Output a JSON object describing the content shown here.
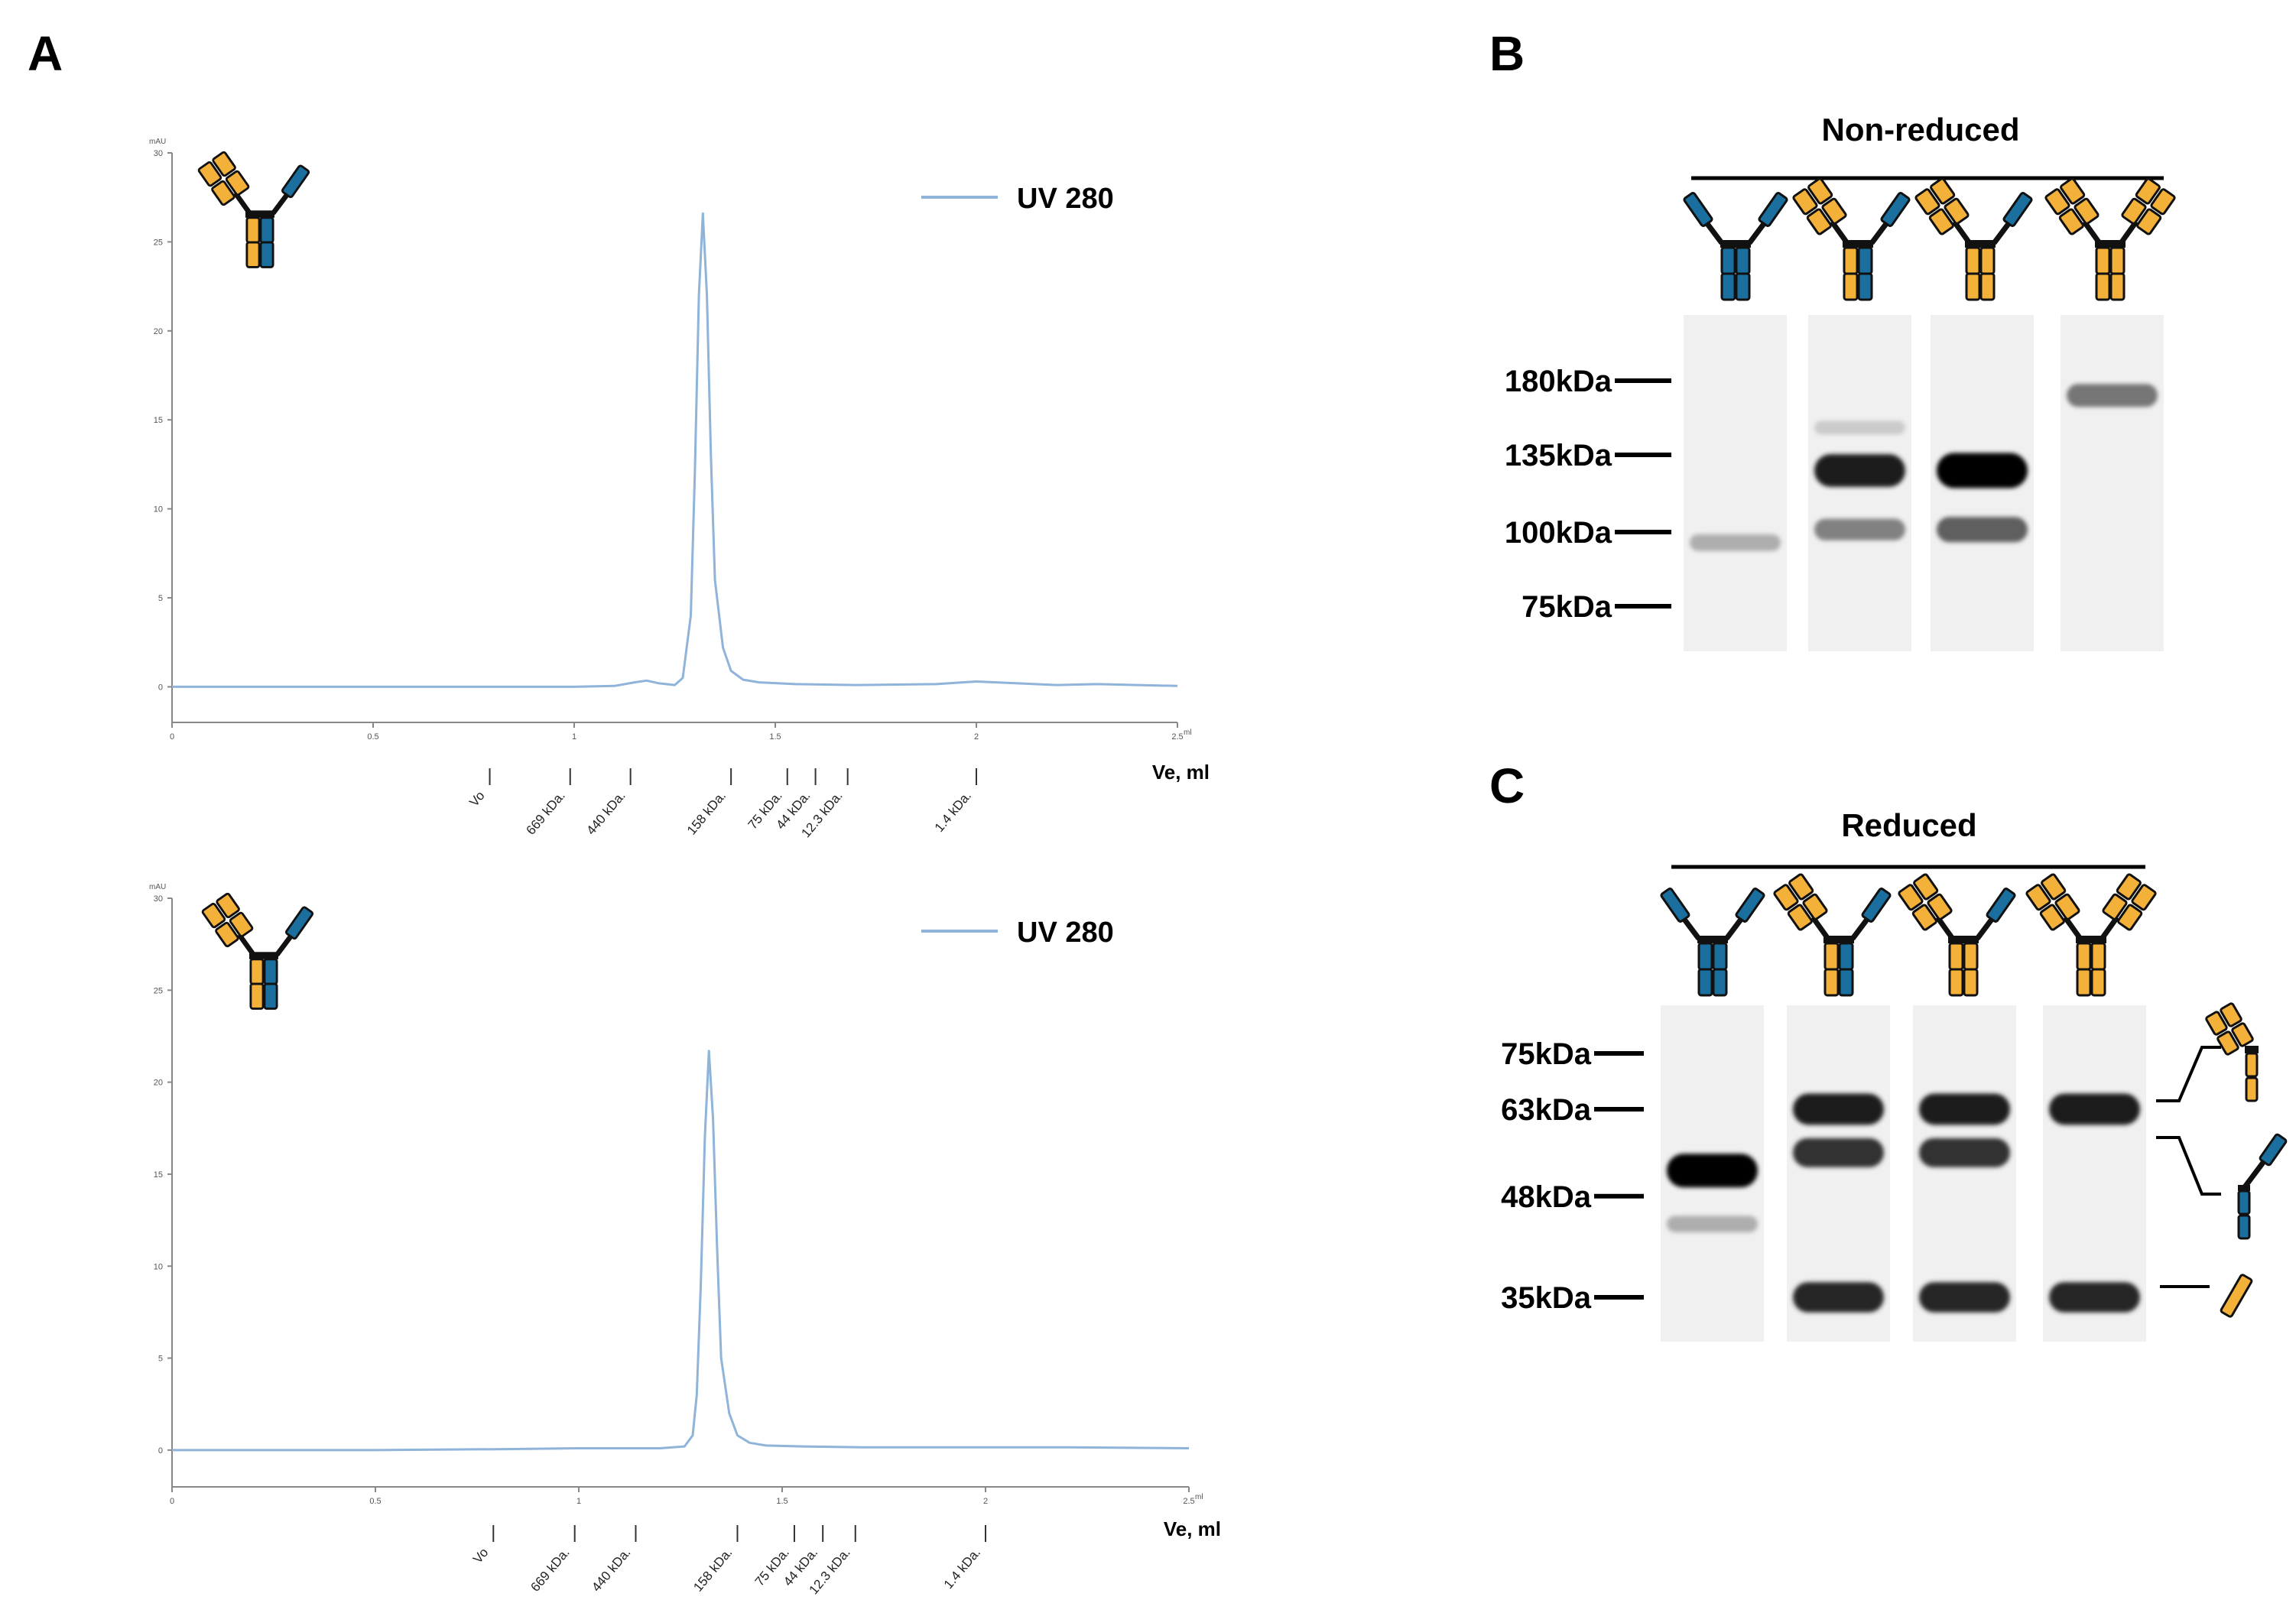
{
  "colors": {
    "trace": "#8fb3d9",
    "orange": "#f4b13a",
    "blue": "#1a6f9e",
    "axis": "#888888"
  },
  "panel_labels": {
    "a": "A",
    "b": "B",
    "c": "C"
  },
  "chart_data": [
    {
      "type": "line",
      "title": "",
      "ylabel": "mAU",
      "xlabel": "Ve, ml",
      "x_unit": "ml",
      "ylim": [
        -2,
        30
      ],
      "xlim": [
        0,
        2.5
      ],
      "y_ticks": [
        0,
        5,
        10,
        15,
        20,
        25,
        30
      ],
      "y_tick_labels": [
        "0",
        "5",
        "10",
        "15",
        "20",
        "25",
        "30"
      ],
      "x_ticks": [
        0,
        0.5,
        1,
        1.5,
        2,
        2.5
      ],
      "x_tick_labels": [
        "0",
        "0.5",
        "1",
        "1.5",
        "2",
        "2.5"
      ],
      "legend": {
        "label": "UV 280",
        "position": "top-right"
      },
      "peak": {
        "x": 1.32,
        "y": 26.6
      },
      "series": [
        {
          "name": "UV 280",
          "x": [
            0,
            0.2,
            0.5,
            0.8,
            1.0,
            1.1,
            1.15,
            1.18,
            1.21,
            1.25,
            1.27,
            1.29,
            1.3,
            1.31,
            1.32,
            1.33,
            1.34,
            1.35,
            1.37,
            1.39,
            1.42,
            1.46,
            1.55,
            1.7,
            1.9,
            2.0,
            2.05,
            2.2,
            2.3,
            2.5
          ],
          "y": [
            0,
            0,
            0,
            0,
            0,
            0.05,
            0.25,
            0.35,
            0.2,
            0.1,
            0.5,
            4,
            12,
            22,
            26.6,
            22,
            13,
            6,
            2.2,
            0.9,
            0.4,
            0.25,
            0.15,
            0.1,
            0.15,
            0.3,
            0.25,
            0.1,
            0.15,
            0.05
          ]
        }
      ],
      "markers": [
        {
          "x": 0.79,
          "label": "Vo"
        },
        {
          "x": 0.99,
          "label": "669 kDa."
        },
        {
          "x": 1.14,
          "label": "440 kDa."
        },
        {
          "x": 1.39,
          "label": "158 kDa."
        },
        {
          "x": 1.53,
          "label": "75 kDa."
        },
        {
          "x": 1.6,
          "label": "44 kDa."
        },
        {
          "x": 1.68,
          "label": "12.3 kDa."
        },
        {
          "x": 2.0,
          "label": "1.4 kDa."
        }
      ]
    },
    {
      "type": "line",
      "title": "",
      "ylabel": "mAU",
      "xlabel": "Ve, ml",
      "x_unit": "ml",
      "ylim": [
        -2,
        30
      ],
      "xlim": [
        0,
        2.5
      ],
      "y_ticks": [
        0,
        5,
        10,
        15,
        20,
        25,
        30
      ],
      "y_tick_labels": [
        "0",
        "5",
        "10",
        "15",
        "20",
        "25",
        "30"
      ],
      "x_ticks": [
        0,
        0.5,
        1,
        1.5,
        2,
        2.5
      ],
      "x_tick_labels": [
        "0",
        "0.5",
        "1",
        "1.5",
        "2",
        "2.5"
      ],
      "legend": {
        "label": "UV 280",
        "position": "top-right"
      },
      "peak": {
        "x": 1.32,
        "y": 21.7
      },
      "series": [
        {
          "name": "UV 280",
          "x": [
            0,
            0.2,
            0.5,
            0.8,
            1.0,
            1.1,
            1.2,
            1.26,
            1.28,
            1.29,
            1.3,
            1.31,
            1.32,
            1.33,
            1.34,
            1.35,
            1.37,
            1.39,
            1.42,
            1.46,
            1.55,
            1.7,
            1.9,
            2.0,
            2.2,
            2.5
          ],
          "y": [
            0,
            0,
            0,
            0.05,
            0.1,
            0.1,
            0.1,
            0.2,
            0.8,
            3,
            9,
            17,
            21.7,
            18,
            11,
            5,
            2,
            0.8,
            0.4,
            0.25,
            0.2,
            0.15,
            0.15,
            0.15,
            0.15,
            0.1
          ]
        }
      ],
      "markers": [
        {
          "x": 0.79,
          "label": "Vo"
        },
        {
          "x": 0.99,
          "label": "669 kDa."
        },
        {
          "x": 1.14,
          "label": "440 kDa."
        },
        {
          "x": 1.39,
          "label": "158 kDa."
        },
        {
          "x": 1.53,
          "label": "75 kDa."
        },
        {
          "x": 1.6,
          "label": "44 kDa."
        },
        {
          "x": 1.68,
          "label": "12.3 kDa."
        },
        {
          "x": 2.0,
          "label": "1.4 kDa."
        }
      ]
    }
  ],
  "gel_nonreduced": {
    "title": "Non-reduced",
    "mw_unit": "kDa",
    "ladder": [
      {
        "mw": 180,
        "label": "180kDa"
      },
      {
        "mw": 135,
        "label": "135kDa"
      },
      {
        "mw": 100,
        "label": "100kDa"
      },
      {
        "mw": 75,
        "label": "75kDa"
      }
    ],
    "lanes": [
      {
        "construct": "fab-fab-blue",
        "bands": [
          {
            "mw": 96,
            "intensity": 0.25
          }
        ]
      },
      {
        "construct": "fab-orange-left",
        "bands": [
          {
            "mw": 150,
            "intensity": 0.12
          },
          {
            "mw": 127,
            "intensity": 0.9
          },
          {
            "mw": 101,
            "intensity": 0.45
          }
        ]
      },
      {
        "construct": "fab-orange-left-large",
        "bands": [
          {
            "mw": 127,
            "intensity": 1.0
          },
          {
            "mw": 101,
            "intensity": 0.6
          }
        ]
      },
      {
        "construct": "fab-orange-both",
        "bands": [
          {
            "mw": 170,
            "intensity": 0.5
          }
        ]
      }
    ]
  },
  "gel_reduced": {
    "title": "Reduced",
    "mw_unit": "kDa",
    "ladder": [
      {
        "mw": 75,
        "label": "75kDa"
      },
      {
        "mw": 63,
        "label": "63kDa"
      },
      {
        "mw": 48,
        "label": "48kDa"
      },
      {
        "mw": 35,
        "label": "35kDa"
      }
    ],
    "lanes": [
      {
        "construct": "fab-fab-blue",
        "bands": [
          {
            "mw": 52,
            "intensity": 1.0
          },
          {
            "mw": 44,
            "intensity": 0.25
          }
        ]
      },
      {
        "construct": "fab-orange-left",
        "bands": [
          {
            "mw": 63,
            "intensity": 0.9
          },
          {
            "mw": 55,
            "intensity": 0.8
          },
          {
            "mw": 35,
            "intensity": 0.85
          }
        ]
      },
      {
        "construct": "fab-orange-left-large",
        "bands": [
          {
            "mw": 63,
            "intensity": 0.9
          },
          {
            "mw": 55,
            "intensity": 0.8
          },
          {
            "mw": 35,
            "intensity": 0.85
          }
        ]
      },
      {
        "construct": "fab-orange-both",
        "bands": [
          {
            "mw": 63,
            "intensity": 0.9
          },
          {
            "mw": 35,
            "intensity": 0.85
          }
        ]
      }
    ],
    "side_annotations": [
      "heavy-chain-fab-fusion-icon",
      "heavy-chain-blue-icon",
      "light-chain-icon"
    ]
  }
}
